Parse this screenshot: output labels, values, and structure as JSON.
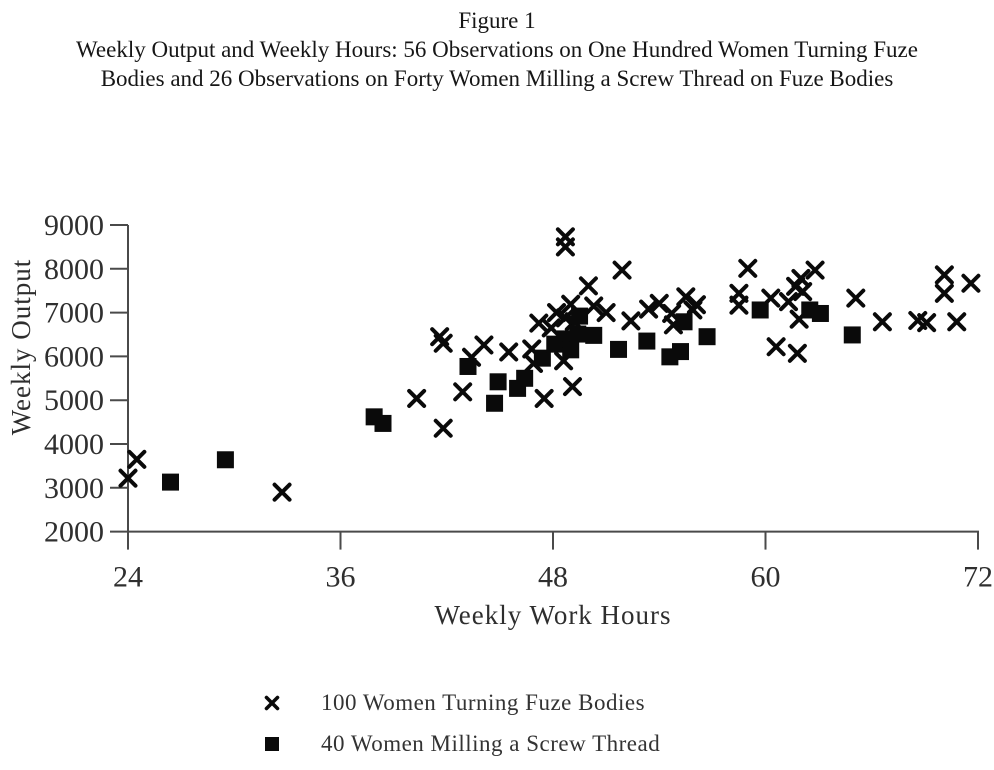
{
  "title": {
    "line1": "Figure 1",
    "line2": "Weekly Output and Weekly Hours: 56 Observations on One Hundred Women Turning Fuze",
    "line3": "Bodies and 26 Observations on Forty Women Milling a Screw Thread on Fuze Bodies"
  },
  "legend": [
    {
      "marker": "x",
      "label": "100 Women Turning Fuze Bodies"
    },
    {
      "marker": "square",
      "label": "40 Women Milling a Screw Thread"
    }
  ],
  "colors": {
    "marker": "#0a0a0a",
    "axis": "#4a4a4a",
    "tick_text": "#2f2f2f"
  },
  "chart_data": {
    "type": "scatter",
    "title": "Figure 1 — Weekly Output and Weekly Hours",
    "xlabel": "Weekly Work Hours",
    "ylabel": "Weekly Output",
    "xlim": [
      24,
      72
    ],
    "ylim": [
      2000,
      9000
    ],
    "x_ticks": [
      24,
      36,
      48,
      60,
      72
    ],
    "y_ticks": [
      2000,
      3000,
      4000,
      5000,
      6000,
      7000,
      8000,
      9000
    ],
    "grid": false,
    "legend_position": "bottom",
    "series": [
      {
        "name": "100 Women Turning Fuze Bodies",
        "marker": "x",
        "points": [
          [
            24.0,
            3220
          ],
          [
            24.5,
            3650
          ],
          [
            32.7,
            2900
          ],
          [
            40.3,
            5040
          ],
          [
            41.6,
            6450
          ],
          [
            41.8,
            6300
          ],
          [
            41.8,
            4360
          ],
          [
            42.9,
            5190
          ],
          [
            43.4,
            5980
          ],
          [
            44.1,
            6260
          ],
          [
            45.5,
            6100
          ],
          [
            46.8,
            6170
          ],
          [
            46.9,
            5840
          ],
          [
            47.5,
            5040
          ],
          [
            48.6,
            5900
          ],
          [
            49.1,
            5310
          ],
          [
            47.2,
            6760
          ],
          [
            47.9,
            6650
          ],
          [
            48.2,
            7000
          ],
          [
            48.7,
            6880
          ],
          [
            49.2,
            6790
          ],
          [
            49.0,
            7190
          ],
          [
            50.3,
            7150
          ],
          [
            51.0,
            7000
          ],
          [
            50.0,
            7610
          ],
          [
            51.9,
            7970
          ],
          [
            48.7,
            8730
          ],
          [
            48.7,
            8500
          ],
          [
            52.4,
            6810
          ],
          [
            53.4,
            7080
          ],
          [
            54.0,
            7210
          ],
          [
            54.7,
            6980
          ],
          [
            54.8,
            6720
          ],
          [
            55.5,
            7360
          ],
          [
            56.1,
            7180
          ],
          [
            55.9,
            7060
          ],
          [
            59.0,
            8010
          ],
          [
            58.5,
            7440
          ],
          [
            58.5,
            7170
          ],
          [
            60.3,
            7330
          ],
          [
            61.3,
            7250
          ],
          [
            60.6,
            6220
          ],
          [
            61.8,
            6070
          ],
          [
            62.0,
            7780
          ],
          [
            62.8,
            7970
          ],
          [
            62.1,
            7480
          ],
          [
            61.7,
            7600
          ],
          [
            61.9,
            6850
          ],
          [
            65.1,
            7330
          ],
          [
            66.6,
            6790
          ],
          [
            68.6,
            6820
          ],
          [
            69.1,
            6770
          ],
          [
            70.8,
            6790
          ],
          [
            70.1,
            7860
          ],
          [
            70.1,
            7440
          ],
          [
            71.6,
            7670
          ]
        ]
      },
      {
        "name": "40 Women Milling a Screw Thread",
        "marker": "square",
        "points": [
          [
            26.4,
            3130
          ],
          [
            29.5,
            3640
          ],
          [
            37.9,
            4620
          ],
          [
            38.4,
            4470
          ],
          [
            43.2,
            5770
          ],
          [
            44.9,
            5420
          ],
          [
            44.7,
            4930
          ],
          [
            46.4,
            5500
          ],
          [
            46.0,
            5270
          ],
          [
            47.4,
            5960
          ],
          [
            48.1,
            6280
          ],
          [
            48.7,
            6400
          ],
          [
            49.4,
            6510
          ],
          [
            50.3,
            6480
          ],
          [
            49.0,
            6150
          ],
          [
            49.5,
            6920
          ],
          [
            51.7,
            6160
          ],
          [
            53.3,
            6350
          ],
          [
            55.4,
            6790
          ],
          [
            56.7,
            6450
          ],
          [
            54.6,
            5990
          ],
          [
            55.2,
            6110
          ],
          [
            59.7,
            7060
          ],
          [
            62.5,
            7060
          ],
          [
            63.1,
            6980
          ],
          [
            64.9,
            6490
          ]
        ]
      }
    ]
  }
}
